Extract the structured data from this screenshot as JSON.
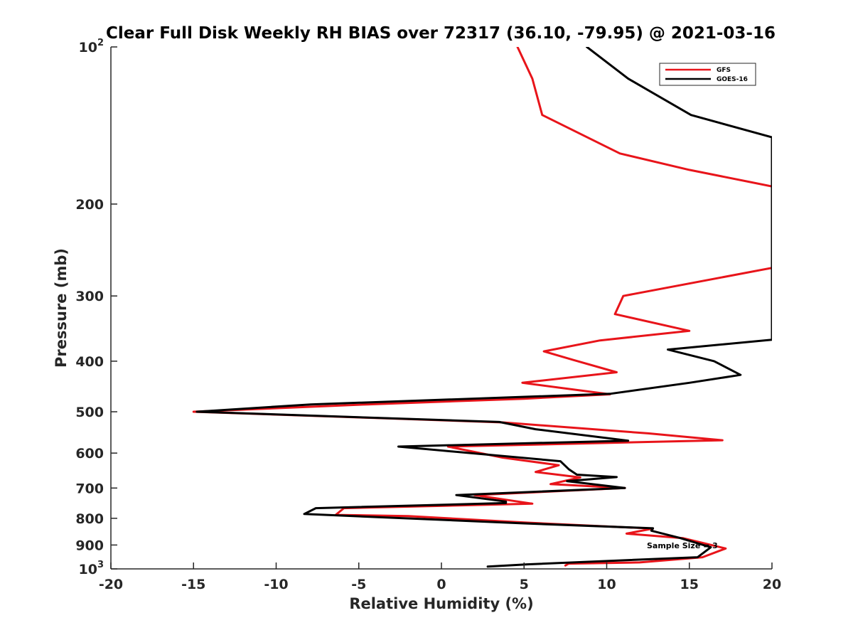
{
  "chart_data": {
    "type": "line",
    "title": "Clear Full Disk Weekly RH BIAS over 72317 (36.10, -79.95) @ 2021-03-16",
    "xlabel": "Relative Humidity (%)",
    "ylabel": "Pressure (mb)",
    "xlim": [
      -20,
      20
    ],
    "ylim": [
      100,
      1000
    ],
    "y_scale": "log",
    "y_reversed": true,
    "x_ticks": [
      "-20",
      "-15",
      "-10",
      "-5",
      "0",
      "5",
      "10",
      "15",
      "20"
    ],
    "y_ticks": [
      {
        "value": 100,
        "base": "10",
        "exp": "2"
      },
      {
        "value": 200,
        "base": "200",
        "exp": ""
      },
      {
        "value": 300,
        "base": "300",
        "exp": ""
      },
      {
        "value": 400,
        "base": "400",
        "exp": ""
      },
      {
        "value": 500,
        "base": "500",
        "exp": ""
      },
      {
        "value": 600,
        "base": "600",
        "exp": ""
      },
      {
        "value": 700,
        "base": "700",
        "exp": ""
      },
      {
        "value": 800,
        "base": "800",
        "exp": ""
      },
      {
        "value": 900,
        "base": "900",
        "exp": ""
      },
      {
        "value": 1000,
        "base": "10",
        "exp": "3"
      }
    ],
    "grid": false,
    "legend_position": "top-right",
    "annotation": "Sample Size = 3",
    "series": [
      {
        "name": "GFS",
        "color": "#e8141a",
        "points": [
          [
            4.6,
            100
          ],
          [
            5.5,
            115
          ],
          [
            6.1,
            135
          ],
          [
            10.8,
            160
          ],
          [
            15,
            172
          ],
          [
            20,
            185
          ],
          [
            20,
            265
          ],
          [
            11,
            300
          ],
          [
            10.5,
            325
          ],
          [
            15,
            350
          ],
          [
            9.6,
            365
          ],
          [
            6.2,
            383
          ],
          [
            8,
            398
          ],
          [
            10.6,
            420
          ],
          [
            4.9,
            440
          ],
          [
            10.2,
            463
          ],
          [
            5,
            472
          ],
          [
            -4.5,
            484
          ],
          [
            -15,
            500
          ],
          [
            -4,
            514
          ],
          [
            3.7,
            524
          ],
          [
            12.5,
            550
          ],
          [
            17,
            567
          ],
          [
            0.4,
            583
          ],
          [
            3.7,
            612
          ],
          [
            7.1,
            633
          ],
          [
            5.7,
            652
          ],
          [
            8.4,
            668
          ],
          [
            6.6,
            688
          ],
          [
            11.1,
            700
          ],
          [
            2,
            722
          ],
          [
            5.5,
            750
          ],
          [
            -5.9,
            765
          ],
          [
            -6.4,
            788
          ],
          [
            -2,
            792
          ],
          [
            5,
            815
          ],
          [
            12.8,
            837
          ],
          [
            11.2,
            856
          ],
          [
            14.6,
            873
          ],
          [
            17.2,
            914
          ],
          [
            15.8,
            950
          ],
          [
            12,
            972
          ],
          [
            7.7,
            977
          ],
          [
            7.5,
            985
          ]
        ]
      },
      {
        "name": "GOES-16",
        "color": "#000000",
        "points": [
          [
            8.8,
            100
          ],
          [
            11.3,
            115
          ],
          [
            15.1,
            135
          ],
          [
            20,
            149
          ],
          [
            20,
            364
          ],
          [
            13.7,
            380
          ],
          [
            16.5,
            400
          ],
          [
            18.1,
            425
          ],
          [
            15,
            440
          ],
          [
            10.2,
            462
          ],
          [
            -7.9,
            484
          ],
          [
            -14.8,
            500
          ],
          [
            3.5,
            523
          ],
          [
            5.7,
            540
          ],
          [
            11.3,
            568
          ],
          [
            -2.6,
            583
          ],
          [
            7.2,
            622
          ],
          [
            7.7,
            644
          ],
          [
            8.2,
            660
          ],
          [
            10.6,
            667
          ],
          [
            7.6,
            679
          ],
          [
            11.1,
            700
          ],
          [
            0.9,
            722
          ],
          [
            3.9,
            743
          ],
          [
            3.9,
            748
          ],
          [
            -7.6,
            765
          ],
          [
            -8.3,
            785
          ],
          [
            5,
            818
          ],
          [
            12.8,
            836
          ],
          [
            12.7,
            845
          ],
          [
            14.4,
            872
          ],
          [
            16.3,
            909
          ],
          [
            15.5,
            950
          ],
          [
            10.3,
            965
          ],
          [
            5.2,
            980
          ],
          [
            2.8,
            990
          ]
        ]
      }
    ]
  }
}
